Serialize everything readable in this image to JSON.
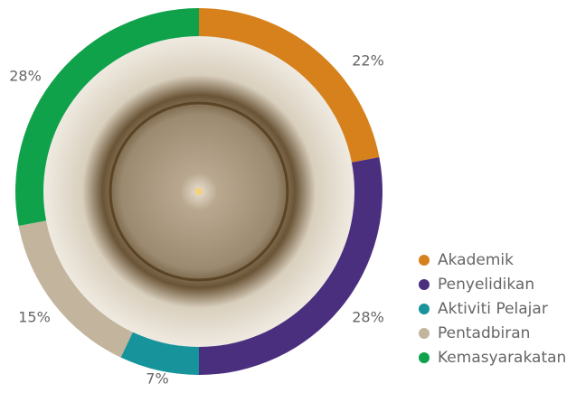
{
  "chart_data": {
    "type": "donut",
    "categories": [
      "Akademik",
      "Penyelidikan",
      "Aktiviti Pelajar",
      "Pentadbiran",
      "Kemasyarakatan"
    ],
    "values": [
      22,
      28,
      7,
      15,
      28
    ],
    "value_labels": [
      "22%",
      "28%",
      "7%",
      "15%",
      "28%"
    ],
    "colors": [
      "#d6811c",
      "#4a2f7e",
      "#17949b",
      "#c3b59d",
      "#10a24b"
    ],
    "legend": "right"
  }
}
